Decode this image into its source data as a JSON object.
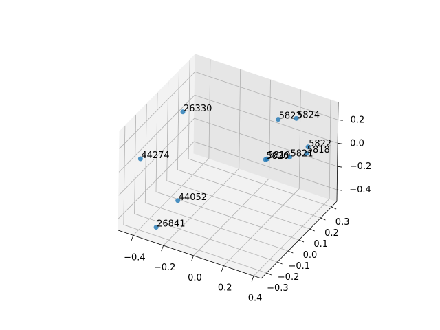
{
  "chart_data": {
    "type": "scatter3d",
    "labels": [
      "26330",
      "44274",
      "44052",
      "26841",
      "5823",
      "5824",
      "5822",
      "5818",
      "5821",
      "5819",
      "5820"
    ],
    "x": [
      -0.33,
      -0.43,
      -0.32,
      -0.32,
      0.16,
      0.28,
      0.36,
      0.35,
      0.24,
      0.09,
      0.08
    ],
    "y": [
      0,
      -0.25,
      -0.05,
      -0.25,
      0.2,
      0.2,
      0.2,
      0.2,
      0.2,
      0.2,
      0.2
    ],
    "z": [
      0.26,
      0.05,
      -0.45,
      -0.49,
      0.22,
      0.28,
      0.07,
      0.01,
      -0.07,
      -0.15,
      -0.16
    ],
    "color": "#1f77b4",
    "xlim": [
      -0.5,
      0.45
    ],
    "ylim": [
      -0.35,
      0.35
    ],
    "zlim": [
      -0.5,
      0.35
    ],
    "xticks": [
      {
        "value": -0.4,
        "label": "−0.4"
      },
      {
        "value": -0.2,
        "label": "−0.2"
      },
      {
        "value": 0,
        "label": "0.0"
      },
      0.2,
      0.4
    ],
    "yticks": [
      {
        "value": -0.3,
        "label": "−0.3"
      },
      {
        "value": -0.2,
        "label": "−0.2"
      },
      {
        "value": -0.1,
        "label": "−0.1"
      },
      {
        "value": 0,
        "label": "0.0"
      },
      0.1,
      0.2,
      0.3
    ],
    "zticks": [
      {
        "value": -0.4,
        "label": "−0.4"
      },
      {
        "value": -0.2,
        "label": "−0.2"
      },
      {
        "value": 0,
        "label": "0.0"
      },
      0.2
    ],
    "grid": true
  }
}
